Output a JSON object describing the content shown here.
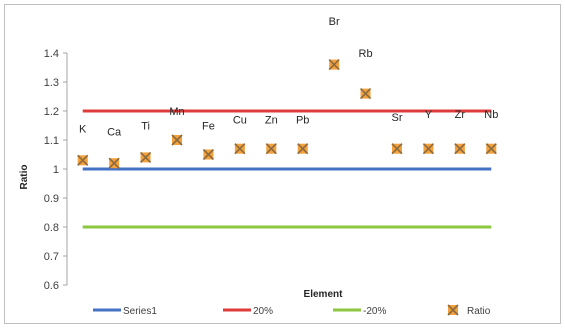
{
  "chart_data": {
    "type": "scatter",
    "title": "",
    "xlabel": "Element",
    "ylabel": "Ratio",
    "ylim": [
      0.6,
      1.4
    ],
    "ytick_step": 0.1,
    "grid": false,
    "legend_position": "bottom",
    "categories": [
      "K",
      "Ca",
      "Ti",
      "Mn",
      "Fe",
      "Cu",
      "Zn",
      "Pb",
      "Br",
      "Rb",
      "Sr",
      "Y",
      "Zr",
      "Nb"
    ],
    "series": [
      {
        "name": "Series1",
        "kind": "line",
        "color": "#4472C4",
        "values": [
          1,
          1,
          1,
          1,
          1,
          1,
          1,
          1,
          1,
          1,
          1,
          1,
          1,
          1
        ]
      },
      {
        "name": "20%",
        "kind": "line",
        "color": "#E03B3B",
        "values": [
          1.2,
          1.2,
          1.2,
          1.2,
          1.2,
          1.2,
          1.2,
          1.2,
          1.2,
          1.2,
          1.2,
          1.2,
          1.2,
          1.2
        ]
      },
      {
        "name": "-20%",
        "kind": "line",
        "color": "#8DC63F",
        "values": [
          0.8,
          0.8,
          0.8,
          0.8,
          0.8,
          0.8,
          0.8,
          0.8,
          0.8,
          0.8,
          0.8,
          0.8,
          0.8,
          0.8
        ]
      },
      {
        "name": "Ratio",
        "kind": "marker",
        "color": "#F2A13D",
        "marker_edge": "#8C6A3F",
        "values": [
          1.03,
          1.02,
          1.04,
          1.1,
          1.05,
          1.07,
          1.07,
          1.07,
          1.36,
          1.26,
          1.07,
          1.07,
          1.07,
          1.07
        ],
        "label_offsets_data": [
          0.11,
          0.11,
          0.11,
          0.1,
          0.1,
          0.1,
          0.1,
          0.1,
          0.15,
          0.14,
          0.11,
          0.12,
          0.12,
          0.12
        ]
      }
    ]
  }
}
